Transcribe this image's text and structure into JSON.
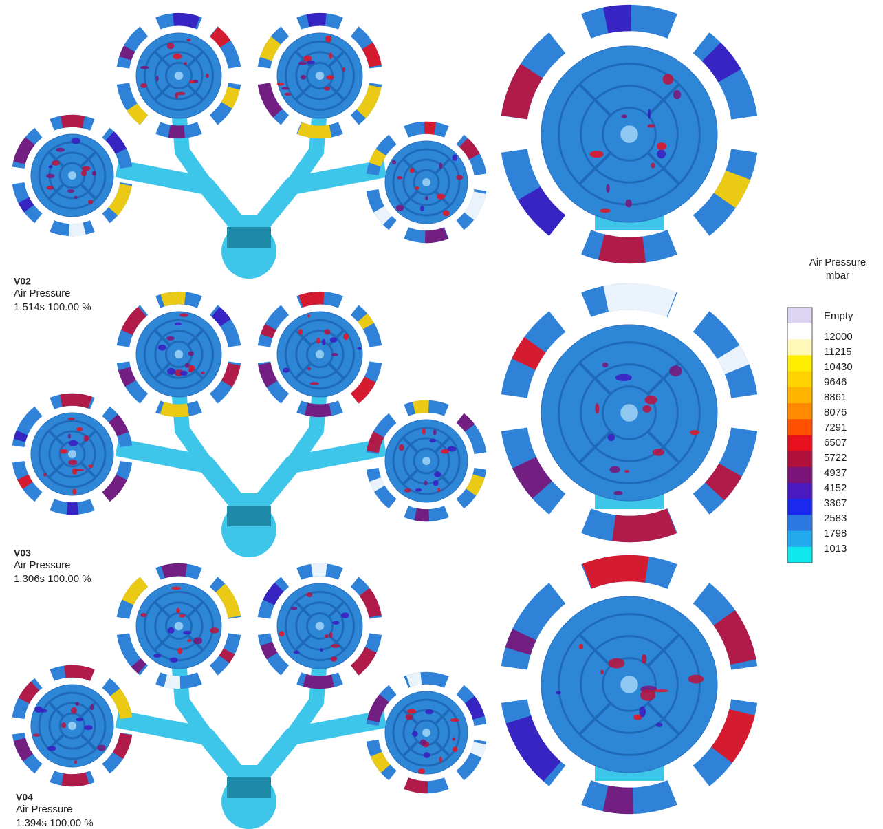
{
  "panels": [
    {
      "version": "V02",
      "quantity": "Air Pressure",
      "time": "1.514s 100.00 %"
    },
    {
      "version": "V03",
      "quantity": "Air Pressure",
      "time": "1.306s 100.00 %"
    },
    {
      "version": "V04",
      "quantity": "Air Pressure",
      "time": "1.394s 100.00 %"
    }
  ],
  "legend": {
    "title": "Air Pressure",
    "unit": "mbar",
    "empty": {
      "label": "Empty",
      "color": "#dcd4f0"
    },
    "items": [
      {
        "value": 12000,
        "color": "#ffffff"
      },
      {
        "value": 11215,
        "color": "#fff8b8"
      },
      {
        "value": 10430,
        "color": "#ffee00"
      },
      {
        "value": 9646,
        "color": "#ffd200"
      },
      {
        "value": 8861,
        "color": "#ffb400"
      },
      {
        "value": 8076,
        "color": "#ff8a00"
      },
      {
        "value": 7291,
        "color": "#ff5000"
      },
      {
        "value": 6507,
        "color": "#e8101e"
      },
      {
        "value": 5722,
        "color": "#b0103c"
      },
      {
        "value": 4937,
        "color": "#7a1478"
      },
      {
        "value": 4152,
        "color": "#4a1ac0"
      },
      {
        "value": 3367,
        "color": "#1a28f0"
      },
      {
        "value": 2583,
        "color": "#2a78e0"
      },
      {
        "value": 1798,
        "color": "#22a8ec"
      },
      {
        "value": 1013,
        "color": "#10e8f0"
      }
    ]
  }
}
